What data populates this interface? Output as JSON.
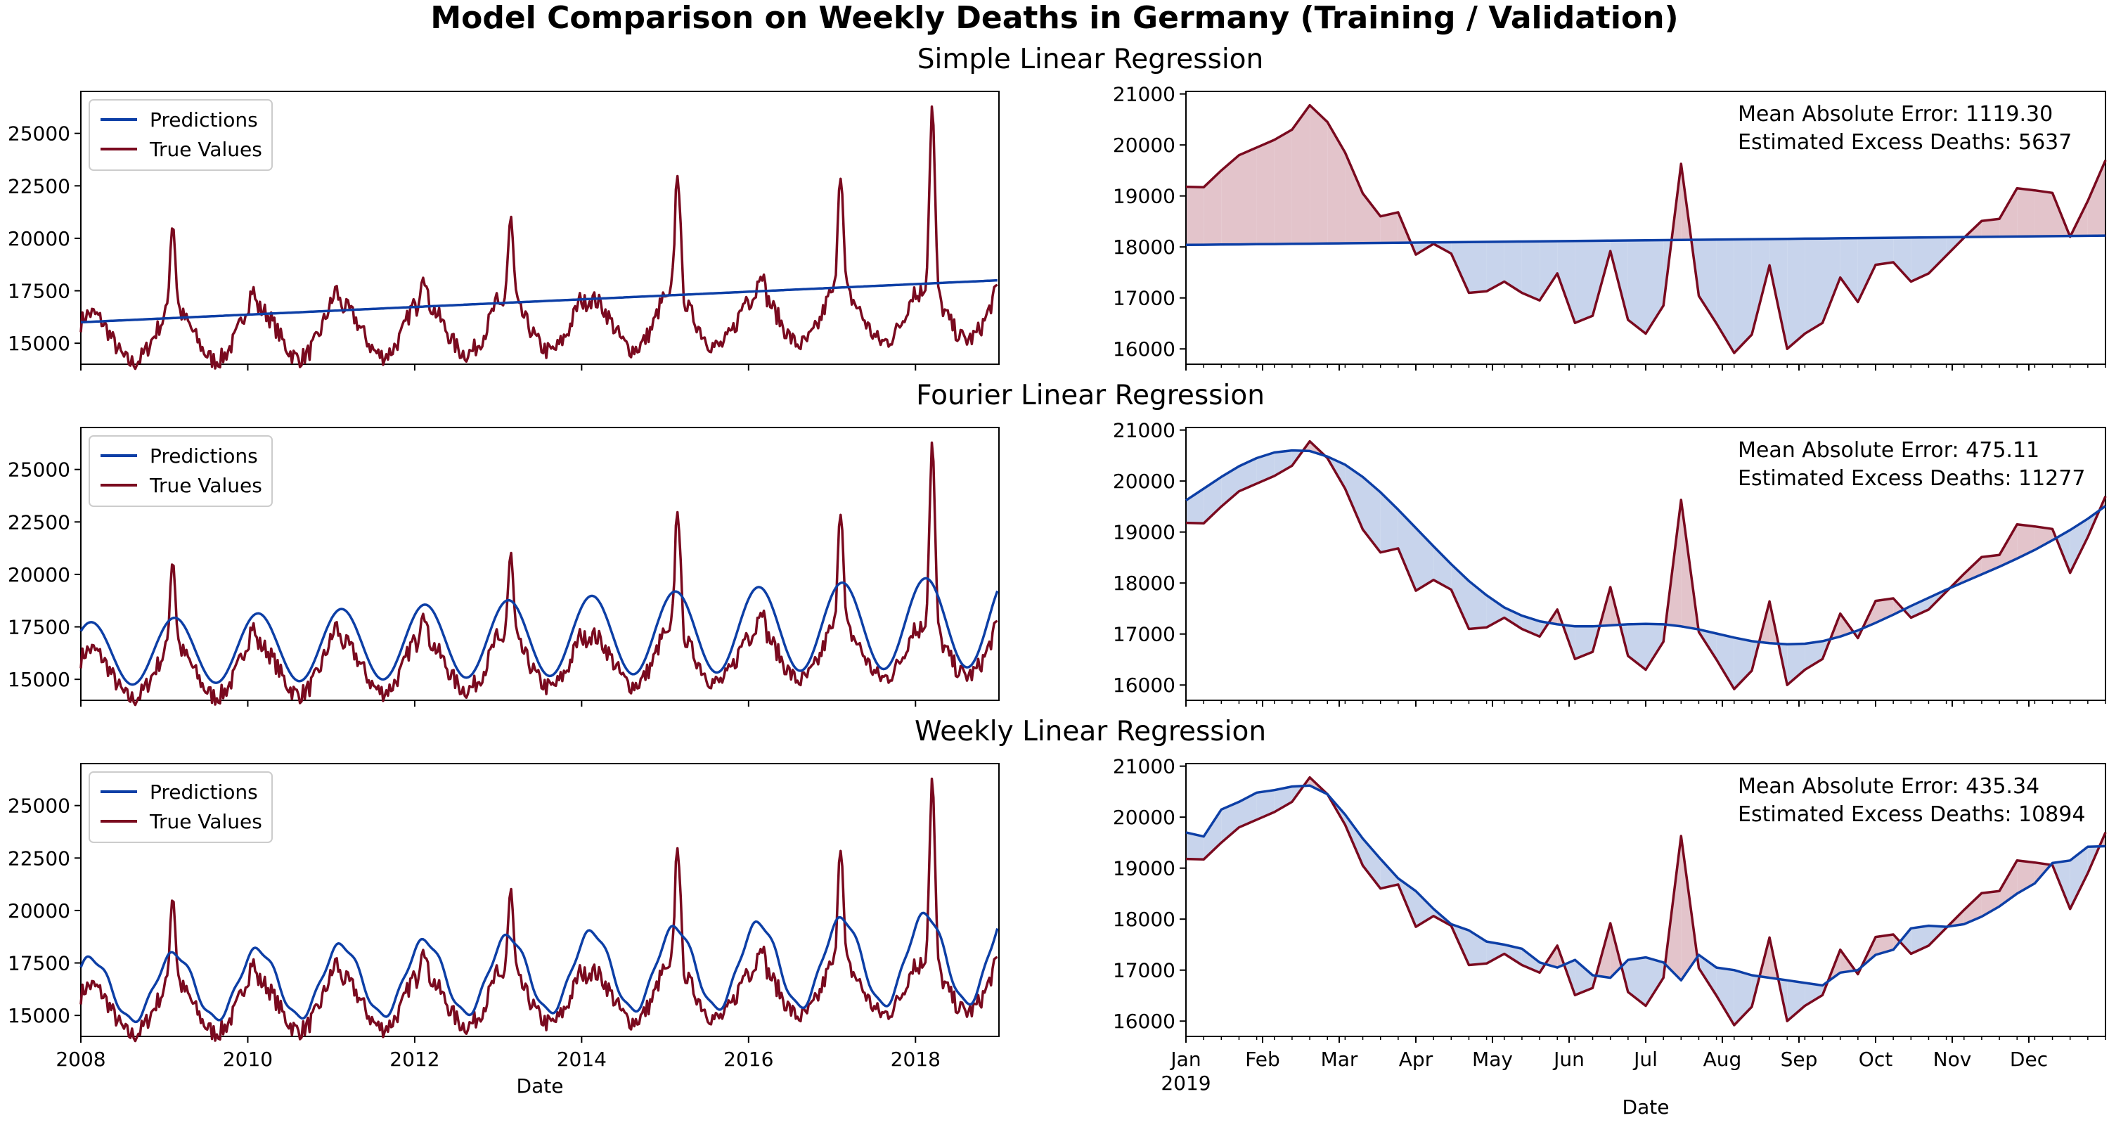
{
  "figure_title": "Model Comparison on Weekly Deaths in Germany (Training / Validation)",
  "colors": {
    "predictions": "#0d3fa6",
    "true_values": "#7a0a1f",
    "fill_under": "#c8d4ec",
    "fill_over": "#e3c4cb",
    "axes": "#000000"
  },
  "legend": [
    "Predictions",
    "True Values"
  ],
  "chart_data": [
    {
      "type": "line",
      "title": "Simple Linear Regression",
      "training": {
        "xlim": [
          2008,
          2019
        ],
        "ylim": [
          14000,
          27000
        ],
        "yticks": [
          15000,
          17500,
          20000,
          22500,
          25000
        ],
        "xticks": [
          2008,
          2010,
          2012,
          2014,
          2016,
          2018
        ],
        "xlabel": "",
        "predictions": {
          "model": "linear",
          "start": 16000,
          "end": 18000
        }
      },
      "validation": {
        "xlim": [
          0,
          52
        ],
        "ylim": [
          15700,
          21050
        ],
        "yticks": [
          16000,
          17000,
          18000,
          19000,
          20000,
          21000
        ],
        "xlabel": "",
        "mean_absolute_error": "Mean Absolute Error: 1119.30",
        "excess_deaths": "Estimated Excess Deaths: 5637",
        "predictions": [
          18040,
          18043,
          18047,
          18050,
          18054,
          18057,
          18061,
          18064,
          18068,
          18071,
          18075,
          18078,
          18082,
          18085,
          18089,
          18092,
          18096,
          18099,
          18103,
          18106,
          18110,
          18113,
          18117,
          18120,
          18124,
          18127,
          18131,
          18134,
          18138,
          18141,
          18145,
          18148,
          18152,
          18155,
          18159,
          18162,
          18166,
          18169,
          18173,
          18176,
          18180,
          18183,
          18187,
          18190,
          18194,
          18197,
          18201,
          18204,
          18208,
          18211,
          18215,
          18218,
          18222
        ]
      }
    },
    {
      "type": "line",
      "title": "Fourier Linear Regression",
      "training": {
        "xlim": [
          2008,
          2019
        ],
        "ylim": [
          14000,
          27000
        ],
        "yticks": [
          15000,
          17500,
          20000,
          22500,
          25000
        ],
        "xticks": [
          2008,
          2010,
          2012,
          2014,
          2016,
          2018
        ],
        "xlabel": "",
        "predictions": {
          "model": "fourier",
          "base_start": 16200,
          "base_end": 17800,
          "amp_start": 1500,
          "amp_end": 2200
        }
      },
      "validation": {
        "xlim": [
          0,
          52
        ],
        "ylim": [
          15700,
          21050
        ],
        "yticks": [
          16000,
          17000,
          18000,
          19000,
          20000,
          21000
        ],
        "xlabel": "",
        "mean_absolute_error": "Mean Absolute Error: 475.11",
        "excess_deaths": "Estimated Excess Deaths: 11277",
        "predictions": [
          19620,
          19850,
          20080,
          20290,
          20450,
          20560,
          20600,
          20590,
          20480,
          20320,
          20080,
          19780,
          19440,
          19080,
          18720,
          18370,
          18040,
          17760,
          17520,
          17360,
          17250,
          17190,
          17150,
          17150,
          17170,
          17190,
          17200,
          17190,
          17150,
          17090,
          17010,
          16930,
          16860,
          16820,
          16800,
          16810,
          16860,
          16950,
          17070,
          17220,
          17380,
          17550,
          17710,
          17870,
          18020,
          18170,
          18320,
          18480,
          18650,
          18840,
          19040,
          19260,
          19510
        ]
      }
    },
    {
      "type": "line",
      "title": "Weekly Linear Regression",
      "training": {
        "xlim": [
          2008,
          2019
        ],
        "ylim": [
          14000,
          27000
        ],
        "yticks": [
          15000,
          17500,
          20000,
          22500,
          25000
        ],
        "xticks": [
          2008,
          2010,
          2012,
          2014,
          2016,
          2018
        ],
        "xlabel": "Date",
        "predictions": {
          "model": "weekly",
          "base_start": 16200,
          "base_end": 17800,
          "amp_start": 1500,
          "amp_end": 2200
        }
      },
      "validation": {
        "xlim": [
          0,
          52
        ],
        "ylim": [
          15700,
          21050
        ],
        "yticks": [
          16000,
          17000,
          18000,
          19000,
          20000,
          21000
        ],
        "xticklabels": [
          "Jan\n2019",
          "Feb",
          "Mar",
          "Apr",
          "May",
          "Jun",
          "Jul",
          "Aug",
          "Sep",
          "Oct",
          "Nov",
          "Dec"
        ],
        "xlabel": "Date",
        "mean_absolute_error": "Mean Absolute Error: 435.34",
        "excess_deaths": "Estimated Excess Deaths: 10894",
        "predictions": [
          19700,
          19620,
          20150,
          20300,
          20480,
          20530,
          20600,
          20620,
          20450,
          20050,
          19580,
          19180,
          18800,
          18550,
          18200,
          17900,
          17780,
          17560,
          17500,
          17420,
          17150,
          17050,
          17200,
          16900,
          16850,
          17200,
          17250,
          17150,
          16800,
          17300,
          17050,
          17000,
          16900,
          16850,
          16800,
          16750,
          16700,
          16950,
          17000,
          17300,
          17400,
          17820,
          17870,
          17850,
          17900,
          18050,
          18250,
          18500,
          18700,
          19100,
          19150,
          19420,
          19430
        ]
      }
    }
  ],
  "validation_true_values": [
    19180,
    19170,
    19500,
    19800,
    19950,
    20100,
    20300,
    20780,
    20450,
    19850,
    19050,
    18600,
    18680,
    17850,
    18060,
    17870,
    17100,
    17130,
    17320,
    17100,
    16950,
    17480,
    16510,
    16650,
    17920,
    16570,
    16300,
    16850,
    19630,
    17040,
    16500,
    15920,
    16280,
    17640,
    16000,
    16300,
    16510,
    17400,
    16920,
    17650,
    17700,
    17320,
    17480,
    17830,
    18180,
    18510,
    18550,
    19150,
    19110,
    19060,
    18200,
    18900,
    19700
  ]
}
